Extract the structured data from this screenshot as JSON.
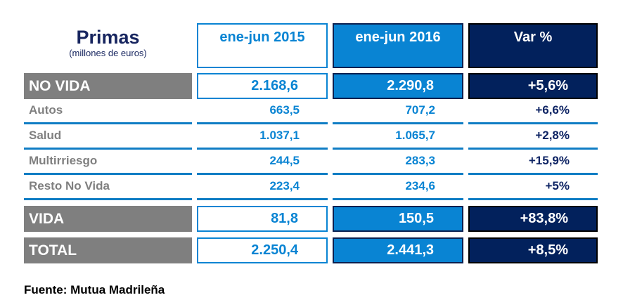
{
  "chart_data": {
    "type": "table",
    "title": "Primas",
    "subtitle": "(millones de euros)",
    "columns": [
      "ene-jun 2015",
      "ene-jun 2016",
      "Var %"
    ],
    "rows": [
      {
        "label": "NO VIDA",
        "style": "section",
        "ene_jun_2015": "2.168,6",
        "ene_jun_2016": "2.290,8",
        "var_pct": "+5,6%"
      },
      {
        "label": "Autos",
        "style": "sub",
        "ene_jun_2015": "663,5",
        "ene_jun_2016": "707,2",
        "var_pct": "+6,6%"
      },
      {
        "label": "Salud",
        "style": "sub",
        "ene_jun_2015": "1.037,1",
        "ene_jun_2016": "1.065,7",
        "var_pct": "+2,8%"
      },
      {
        "label": "Multirriesgo",
        "style": "sub",
        "ene_jun_2015": "244,5",
        "ene_jun_2016": "283,3",
        "var_pct": "+15,9%"
      },
      {
        "label": "Resto No Vida",
        "style": "sub",
        "ene_jun_2015": "223,4",
        "ene_jun_2016": "234,6",
        "var_pct": "+5%"
      },
      {
        "label": "VIDA",
        "style": "section",
        "ene_jun_2015": "81,8",
        "ene_jun_2016": "150,5",
        "var_pct": "+83,8%"
      },
      {
        "label": "TOTAL",
        "style": "section",
        "ene_jun_2015": "2.250,4",
        "ene_jun_2016": "2.441,3",
        "var_pct": "+8,5%"
      }
    ],
    "source": "Fuente: Mutua Madrileña",
    "layout": {
      "legend": "none",
      "grid": "row-rules"
    }
  },
  "colors": {
    "accent_blue": "#0984d3",
    "navy": "#02215c",
    "band_gray": "#7f7f7f",
    "label_gray": "#808080",
    "title_navy": "#17255f",
    "rule_blue": "#0f7dc4"
  }
}
